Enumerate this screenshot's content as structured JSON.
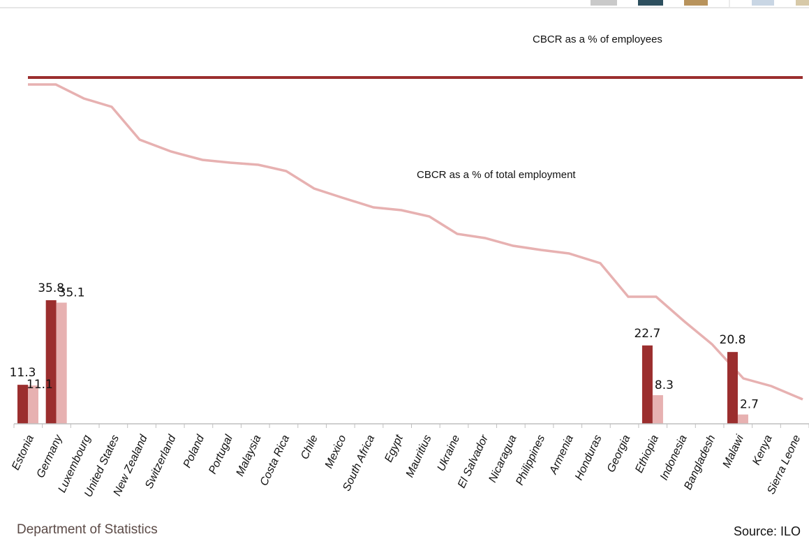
{
  "colors": {
    "employees": "#9b2e2e",
    "total_employment": "#e7b1b1",
    "axis": "#bfbfbf",
    "label": "#111111"
  },
  "footer": {
    "department": "Department of Statistics",
    "source": "Source: ILO"
  },
  "chart_data": {
    "type": "bar",
    "categories": [
      "Estonia",
      "Germany",
      "Luxembourg",
      "United States",
      "New Zealand",
      "Switzerland",
      "Poland",
      "Portugal",
      "Malaysia",
      "Costa Rica",
      "Chile",
      "Mexico",
      "South Africa",
      "Egypt",
      "Mauritius",
      "Ukraine",
      "El Salvador",
      "Nicaragua",
      "Philippines",
      "Armenia",
      "Honduras",
      "Georgia",
      "Ethiopia",
      "Indonesia",
      "Bangladesh",
      "Malawi",
      "Kenya",
      "Sierra Leone"
    ],
    "series": [
      {
        "name": "CBCR as a % of employees",
        "values": [
          11.3,
          35.8,
          null,
          null,
          null,
          null,
          null,
          null,
          null,
          null,
          null,
          null,
          null,
          null,
          null,
          null,
          null,
          null,
          null,
          null,
          null,
          null,
          22.7,
          null,
          null,
          20.8,
          null,
          null
        ],
        "labels": [
          "11.3",
          "35.8",
          "",
          "",
          "",
          "",
          "",
          "",
          "",
          "",
          "",
          "",
          "",
          "",
          "",
          "",
          "",
          "",
          "",
          "",
          "",
          "",
          "22.7",
          "",
          "",
          "20.8",
          "",
          ""
        ]
      },
      {
        "name": "CBCR as a % of total employment",
        "values": [
          11.1,
          35.1,
          null,
          null,
          null,
          null,
          null,
          null,
          null,
          null,
          null,
          null,
          null,
          null,
          null,
          null,
          null,
          null,
          null,
          null,
          null,
          null,
          8.3,
          null,
          null,
          2.7,
          null,
          null
        ],
        "labels": [
          "11.1",
          "35.1",
          "",
          "",
          "",
          "",
          "",
          "",
          "",
          "",
          "",
          "",
          "",
          "",
          "",
          "",
          "",
          "",
          "",
          "",
          "",
          "",
          "8.3",
          "",
          "",
          "2.7",
          "",
          ""
        ]
      }
    ],
    "annotation_lines": [
      {
        "name": "CBCR as a % of employees",
        "label": "CBCR as a % of employees",
        "style": "flat"
      },
      {
        "name": "CBCR as a % of total employment",
        "label": "CBCR as a % of total employment",
        "style": "declining"
      }
    ],
    "ylim": [
      0,
      40
    ],
    "grid": false,
    "legend": "inline annotations"
  }
}
